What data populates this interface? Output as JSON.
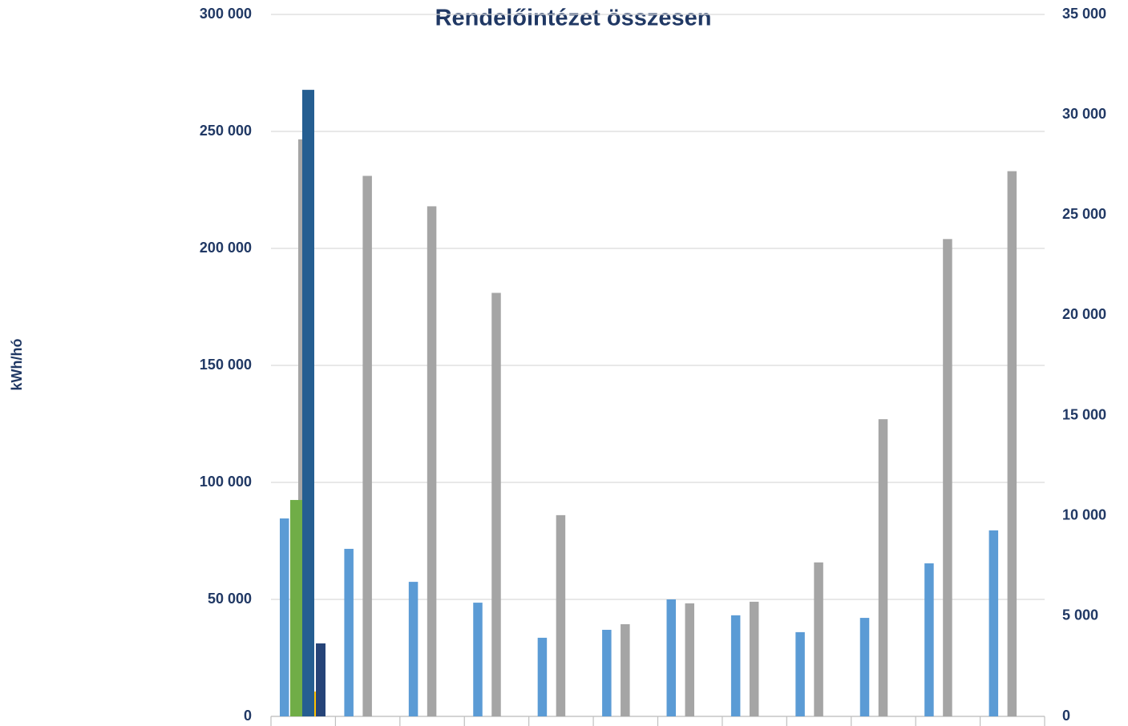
{
  "chart_data": {
    "type": "bar",
    "title": "Rendelőintézet összesen",
    "y_label": "kWh/hó",
    "categories": [
      null,
      null,
      null,
      null,
      null,
      null,
      null,
      null,
      null,
      null,
      null,
      null
    ],
    "ylim": [
      0,
      300000
    ],
    "yticks": [
      {
        "value": 0,
        "label": "0"
      },
      {
        "value": 50000,
        "label": "50 000"
      },
      {
        "value": 100000,
        "label": "100 000"
      },
      {
        "value": 150000,
        "label": "150 000"
      },
      {
        "value": 200000,
        "label": "200 000"
      },
      {
        "value": 250000,
        "label": "250 000"
      },
      {
        "value": 300000,
        "label": "300 000"
      }
    ],
    "y2lim": [
      0,
      35000
    ],
    "y2ticks": [
      {
        "value": 0,
        "label": "0"
      },
      {
        "value": 5000,
        "label": "5 000"
      },
      {
        "value": 10000,
        "label": "10 000"
      },
      {
        "value": 15000,
        "label": "15 000"
      },
      {
        "value": 20000,
        "label": "20 000"
      },
      {
        "value": 25000,
        "label": "25 000"
      },
      {
        "value": 30000,
        "label": "30 000"
      },
      {
        "value": 35000,
        "label": "35 000"
      }
    ],
    "grid": true,
    "series": [
      {
        "color": "#5b9bd5",
        "values": [
          84600,
          71600,
          57500,
          48600,
          33600,
          37000,
          50000,
          43200,
          36000,
          42100,
          65400,
          79500
        ]
      },
      {
        "color": "#a5a5a5",
        "values": [
          246600,
          231000,
          218000,
          181000,
          86000,
          39400,
          48300,
          49000,
          65800,
          127000,
          204000,
          233000
        ]
      },
      {
        "color": "#70ad47",
        "axis": "y2",
        "values": [
          10790,
          null,
          null,
          null,
          null,
          null,
          null,
          null,
          null,
          null,
          null,
          null
        ]
      },
      {
        "color": "#255e91",
        "axis": "y2",
        "values": [
          31240,
          null,
          null,
          null,
          null,
          null,
          null,
          null,
          null,
          null,
          null,
          null
        ]
      },
      {
        "color": "#ffc000",
        "axis": "y2",
        "values": [
          1240,
          null,
          null,
          null,
          null,
          null,
          null,
          null,
          null,
          null,
          null,
          null
        ]
      },
      {
        "color": "#264478",
        "axis": "y2",
        "values": [
          3640,
          null,
          null,
          null,
          null,
          null,
          null,
          null,
          null,
          null,
          null,
          null
        ]
      }
    ]
  }
}
